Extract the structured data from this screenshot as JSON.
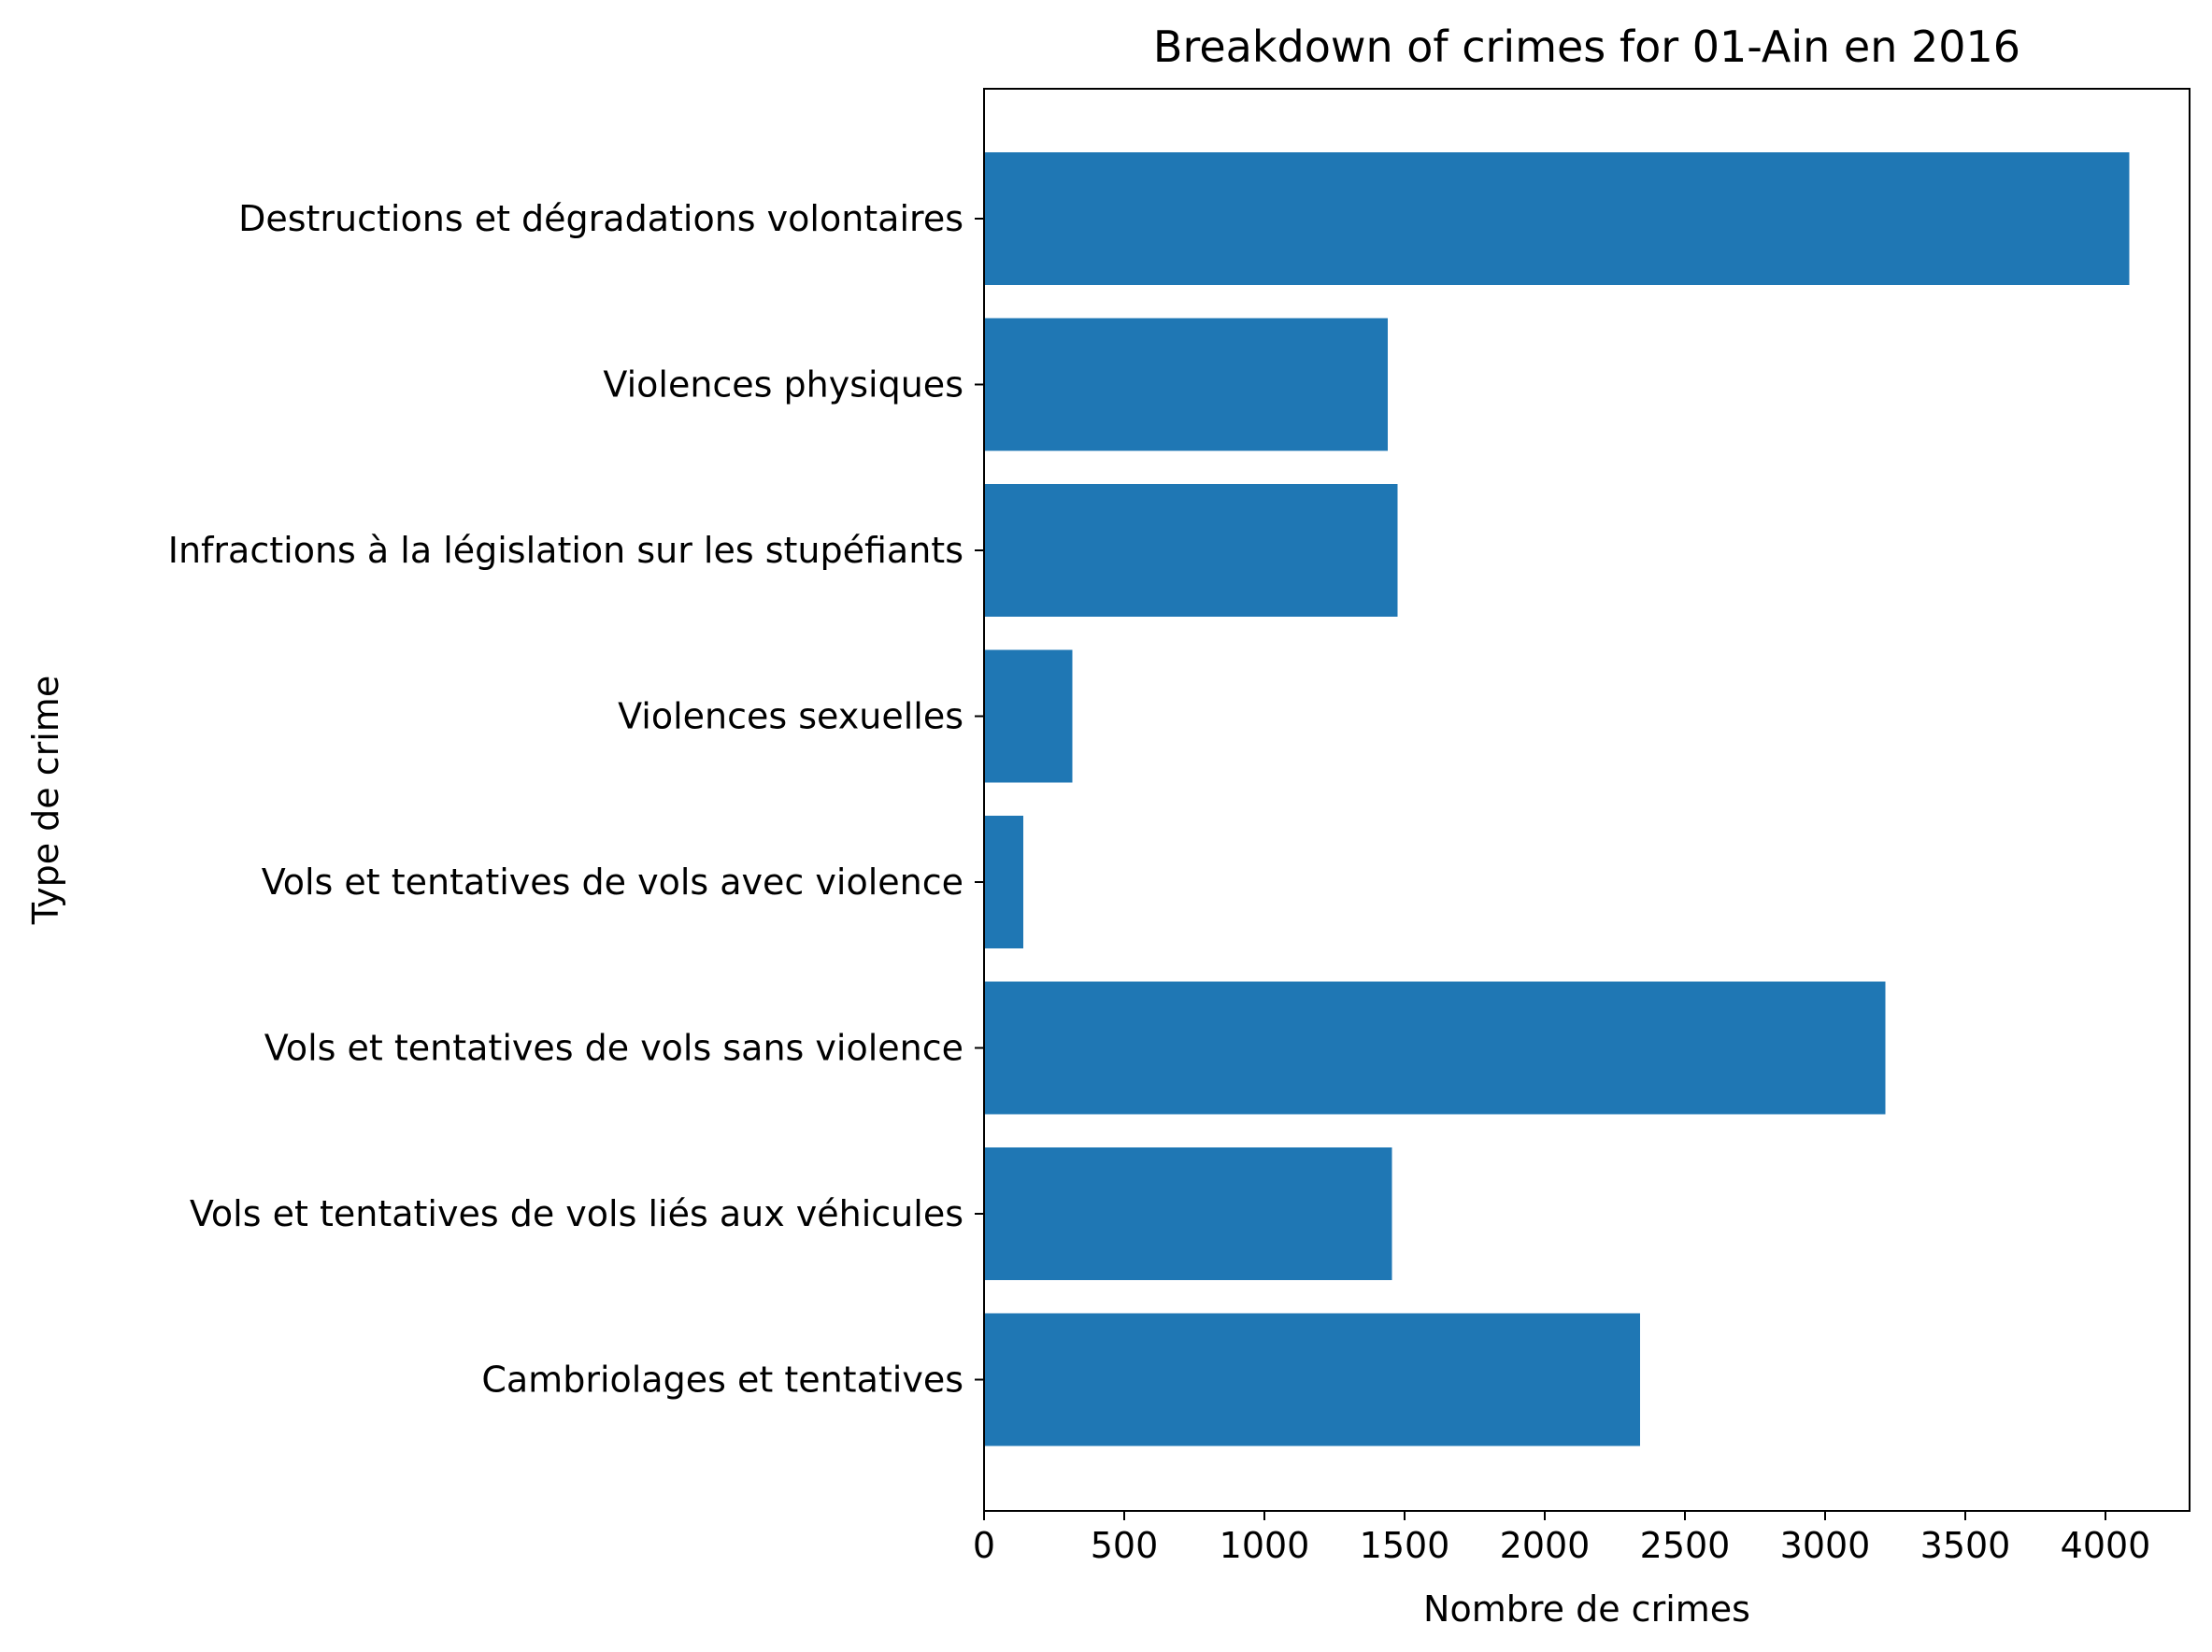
{
  "chart_data": {
    "type": "bar",
    "orientation": "horizontal",
    "title": "Breakdown of crimes for 01-Ain en 2016",
    "xlabel": "Nombre de crimes",
    "ylabel": "Type de crime",
    "xlim": [
      0,
      4300
    ],
    "xticks": [
      0,
      500,
      1000,
      1500,
      2000,
      2500,
      3000,
      3500,
      4000
    ],
    "grid": false,
    "bar_color": "#1f77b4",
    "categories": [
      "Cambriolages et tentatives",
      "Vols et tentatives de vols liés aux véhicules",
      "Vols et tentatives de vols sans violence",
      "Vols et tentatives de vols avec violence",
      "Violences sexuelles",
      "Infractions à la législation sur les stupéfiants",
      "Violences physiques",
      "Destructions et dégradations volontaires"
    ],
    "values": [
      2340,
      1455,
      3215,
      140,
      315,
      1475,
      1440,
      4085
    ]
  }
}
